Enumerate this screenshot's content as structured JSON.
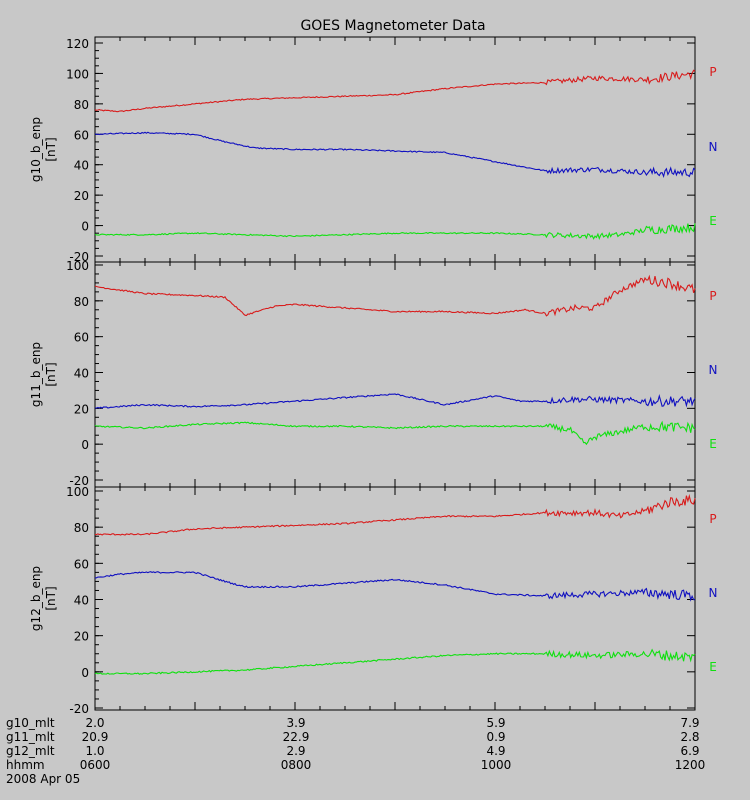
{
  "title": "GOES Magnetometer Data",
  "colors": {
    "P": "#d81c1c",
    "N": "#1010c0",
    "E": "#10e010",
    "background": "#c8c8c8",
    "axis": "#000000"
  },
  "legend_labels": [
    "P",
    "N",
    "E"
  ],
  "footer": {
    "rows": [
      {
        "label": "g10_mlt",
        "values": [
          "2.0",
          "3.9",
          "5.9",
          "7.9"
        ]
      },
      {
        "label": "g11_mlt",
        "values": [
          "20.9",
          "22.9",
          "0.9",
          "2.8"
        ]
      },
      {
        "label": "g12_mlt",
        "values": [
          "1.0",
          "2.9",
          "4.9",
          "6.9"
        ]
      },
      {
        "label": "hhmm",
        "values": [
          "0600",
          "0800",
          "1000",
          "1200"
        ]
      }
    ],
    "date": "2008 Apr 05"
  },
  "chart_data": [
    {
      "type": "line",
      "ylabel": "g10_b_enp",
      "yunit": "[nT]",
      "ylim": [
        -20,
        120
      ],
      "yticks": [
        -20,
        0,
        20,
        40,
        60,
        80,
        100,
        120
      ],
      "xlim_hours": [
        6,
        12
      ],
      "series": [
        {
          "name": "P",
          "x": [
            6.0,
            6.25,
            6.5,
            7.0,
            7.5,
            8.0,
            8.5,
            9.0,
            9.5,
            10.0,
            10.5,
            11.0,
            11.5,
            12.0
          ],
          "values": [
            76,
            75,
            77,
            80,
            83,
            84,
            85,
            86,
            90,
            93,
            94,
            97,
            96,
            100
          ]
        },
        {
          "name": "N",
          "x": [
            6.0,
            6.5,
            7.0,
            7.3,
            7.6,
            8.0,
            8.5,
            9.0,
            9.5,
            10.0,
            10.5,
            11.0,
            11.5,
            12.0
          ],
          "values": [
            60,
            61,
            60,
            55,
            51,
            50,
            50,
            49,
            48,
            42,
            36,
            37,
            35,
            35
          ]
        },
        {
          "name": "E",
          "x": [
            6.0,
            6.5,
            7.0,
            7.5,
            8.0,
            8.5,
            9.0,
            9.5,
            10.0,
            10.5,
            11.0,
            11.25,
            11.5,
            11.75,
            12.0
          ],
          "values": [
            -6,
            -6,
            -5,
            -6,
            -7,
            -6,
            -5,
            -5,
            -5,
            -6,
            -7,
            -6,
            -3,
            -2,
            -1
          ]
        }
      ]
    },
    {
      "type": "line",
      "ylabel": "g11_b_enp",
      "yunit": "[nT]",
      "ylim": [
        -20,
        100
      ],
      "yticks": [
        -20,
        0,
        20,
        40,
        60,
        80,
        100
      ],
      "xlim_hours": [
        6,
        12
      ],
      "series": [
        {
          "name": "P",
          "x": [
            6.0,
            6.5,
            7.0,
            7.3,
            7.5,
            7.8,
            8.0,
            8.5,
            9.0,
            9.5,
            10.0,
            10.3,
            10.5,
            10.8,
            11.0,
            11.25,
            11.5,
            11.75,
            12.0
          ],
          "values": [
            88,
            84,
            83,
            82,
            72,
            77,
            78,
            76,
            74,
            74,
            73,
            75,
            73,
            76,
            76,
            86,
            92,
            90,
            86
          ]
        },
        {
          "name": "N",
          "x": [
            6.0,
            6.5,
            7.0,
            7.5,
            8.0,
            8.5,
            9.0,
            9.5,
            10.0,
            10.25,
            10.5,
            10.75,
            11.0,
            11.5,
            12.0
          ],
          "values": [
            20,
            22,
            21,
            22,
            24,
            26,
            28,
            22,
            27,
            24,
            24,
            25,
            25,
            24,
            24
          ]
        },
        {
          "name": "E",
          "x": [
            6.0,
            6.5,
            7.0,
            7.5,
            8.0,
            8.5,
            9.0,
            9.5,
            10.0,
            10.5,
            10.75,
            10.9,
            11.0,
            11.25,
            11.5,
            12.0
          ],
          "values": [
            10,
            9,
            11,
            12,
            10,
            10,
            9,
            10,
            10,
            10,
            8,
            0,
            4,
            7,
            10,
            9
          ]
        }
      ]
    },
    {
      "type": "line",
      "ylabel": "g12_b_enp",
      "yunit": "[nT]",
      "ylim": [
        -20,
        100
      ],
      "yticks": [
        -20,
        0,
        20,
        40,
        60,
        80,
        100
      ],
      "xlim_hours": [
        6,
        12
      ],
      "series": [
        {
          "name": "P",
          "x": [
            6.0,
            6.5,
            7.0,
            7.5,
            8.0,
            8.5,
            9.0,
            9.5,
            10.0,
            10.5,
            11.0,
            11.25,
            11.5,
            11.75,
            12.0
          ],
          "values": [
            76,
            76,
            79,
            80,
            81,
            82,
            84,
            86,
            86,
            88,
            88,
            86,
            89,
            94,
            95
          ]
        },
        {
          "name": "N",
          "x": [
            6.0,
            6.25,
            6.5,
            7.0,
            7.3,
            7.5,
            8.0,
            8.5,
            9.0,
            9.5,
            10.0,
            10.5,
            11.0,
            11.5,
            12.0
          ],
          "values": [
            52,
            54,
            55,
            55,
            50,
            47,
            47,
            49,
            51,
            48,
            43,
            42,
            43,
            44,
            42
          ]
        },
        {
          "name": "E",
          "x": [
            6.0,
            6.5,
            7.0,
            7.5,
            8.0,
            8.5,
            9.0,
            9.5,
            10.0,
            10.5,
            11.0,
            11.5,
            12.0
          ],
          "values": [
            -1,
            -1,
            0,
            1,
            3,
            5,
            7,
            9,
            10,
            10,
            9,
            10,
            8
          ]
        }
      ]
    }
  ]
}
